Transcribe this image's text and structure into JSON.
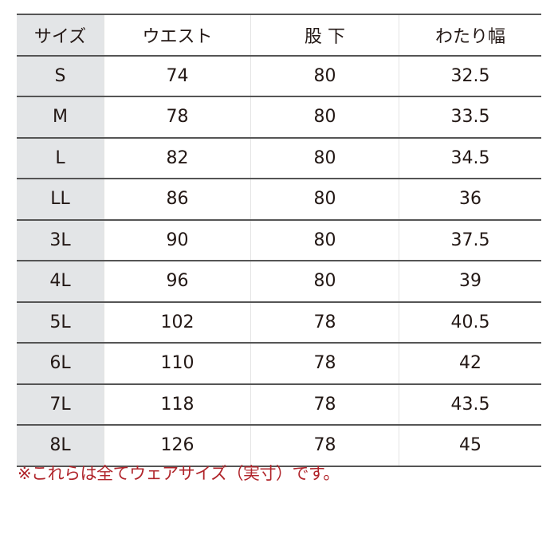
{
  "table": {
    "headers": [
      "サイズ",
      "ウエスト",
      "股 下",
      "わたり幅"
    ],
    "rows": [
      [
        "S",
        "74",
        "80",
        "32.5"
      ],
      [
        "M",
        "78",
        "80",
        "33.5"
      ],
      [
        "L",
        "82",
        "80",
        "34.5"
      ],
      [
        "LL",
        "86",
        "80",
        "36"
      ],
      [
        "3L",
        "90",
        "80",
        "37.5"
      ],
      [
        "4L",
        "96",
        "80",
        "39"
      ],
      [
        "5L",
        "102",
        "78",
        "40.5"
      ],
      [
        "6L",
        "110",
        "78",
        "42"
      ],
      [
        "7L",
        "118",
        "78",
        "43.5"
      ],
      [
        "8L",
        "126",
        "78",
        "45"
      ]
    ]
  },
  "note": "※これらは全てウェアサイズ（実寸）です。",
  "colors": {
    "header_column_bg": "#e3e5e7",
    "note": "#b0242a",
    "rule": "#555555"
  }
}
